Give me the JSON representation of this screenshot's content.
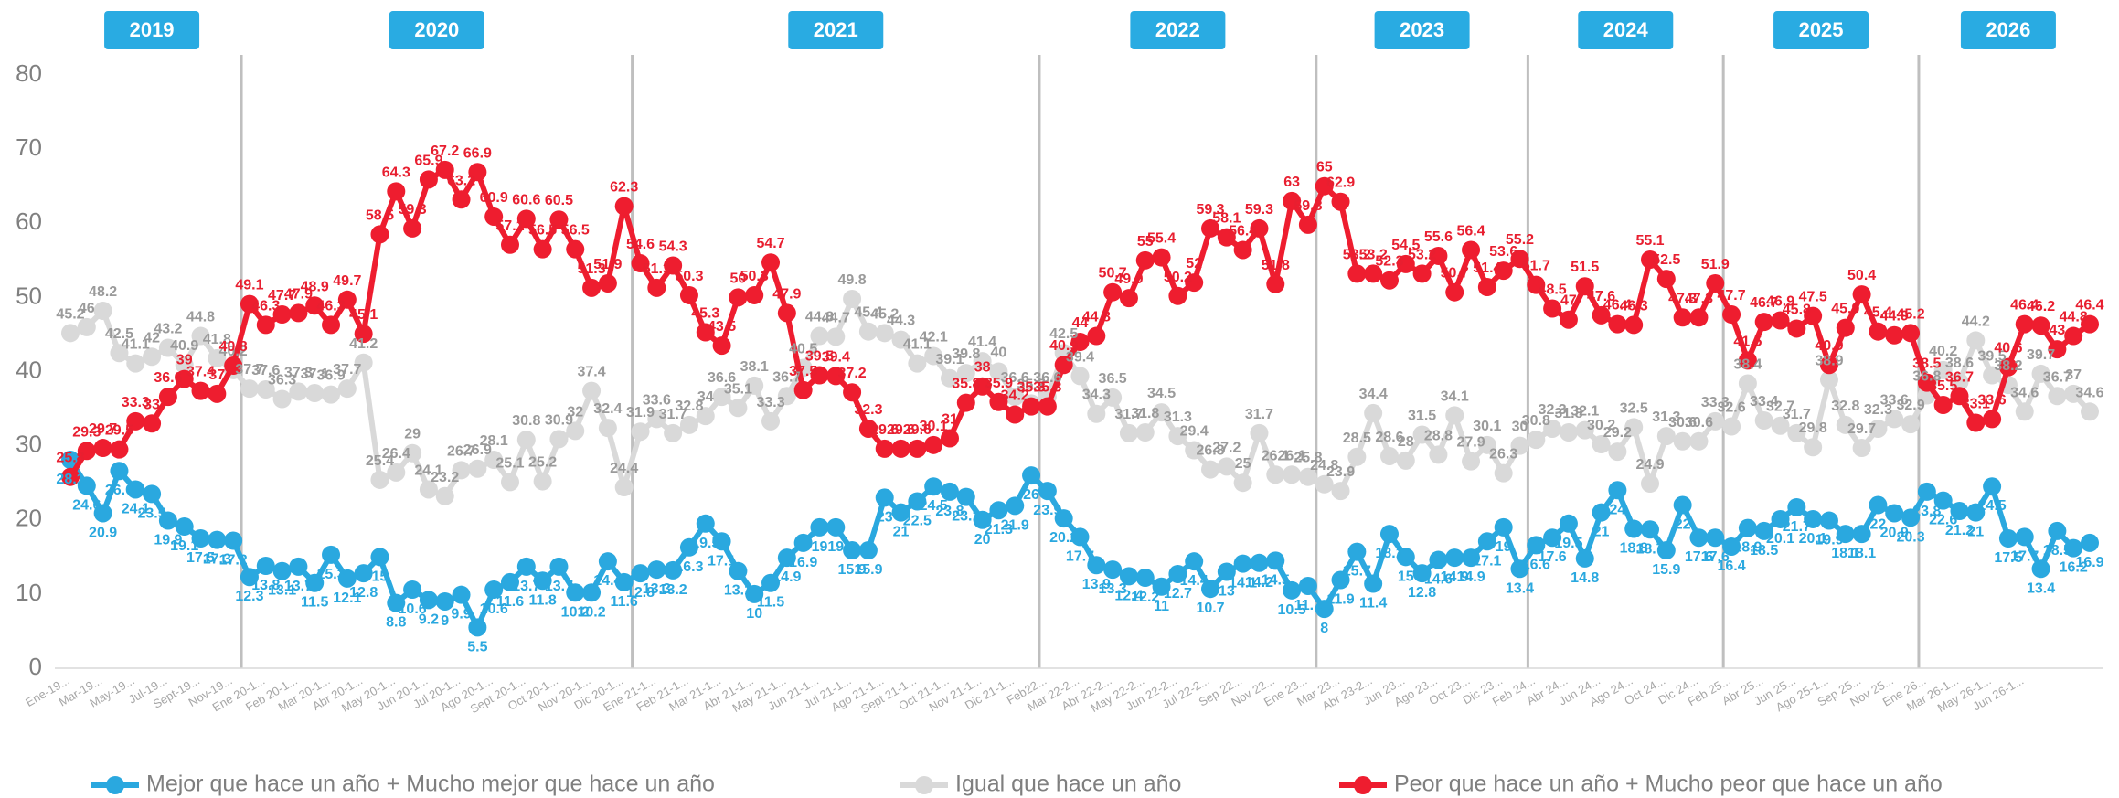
{
  "chart_data": {
    "type": "line",
    "years": [
      "2019",
      "2020",
      "2021",
      "2022",
      "2023",
      "2024",
      "2025",
      "2026"
    ],
    "categories": [
      "Ene-19...",
      null,
      "Mar-19...",
      null,
      "May-19...",
      null,
      "Jul-19...",
      null,
      "Sept-19...",
      null,
      "Nov-19...",
      null,
      "Ene 20-1...",
      null,
      "Feb 20-1...",
      null,
      "Mar 20-1...",
      null,
      "Abr 20-1...",
      null,
      "May 20-1...",
      null,
      "Jun 20-1...",
      null,
      "Jul 20-1...",
      null,
      "Ago 20-1...",
      null,
      "Sept 20-1...",
      null,
      "Oct 20-1...",
      null,
      "Nov 20-1...",
      null,
      "Dic 20-1...",
      null,
      "Ene 21-1...",
      null,
      "Feb 21-1...",
      null,
      "Mar 21-1...",
      null,
      "Abr 21-1...",
      null,
      "May 21-1...",
      null,
      "Jun 21-1...",
      null,
      "Jul 21-1...",
      null,
      "Ago 21-1...",
      null,
      "Sept 21-1...",
      null,
      "Oct 21-1...",
      null,
      "Nov 21-1...",
      null,
      "Dic 21-1...",
      null,
      "Feb22...",
      null,
      "Mar 22-2...",
      null,
      "Abr 22-2...",
      null,
      "May 22-2...",
      null,
      "Jun 22-2...",
      null,
      "Jul 22-2...",
      null,
      "Sep 22...",
      null,
      "Nov 22...",
      null,
      "Ene 23...",
      null,
      "Mar 23...",
      null,
      "Abr 23-2...",
      null,
      "Jun 23...",
      null,
      "Ago 23...",
      null,
      "Oct 23...",
      null,
      "Dic 23...",
      null,
      "Feb 24...",
      null,
      "Abr 24...",
      null,
      "Jun 24...",
      null,
      "Ago 24...",
      null,
      "Oct 24...",
      null,
      "Dic 24...",
      null,
      "Feb 25...",
      null,
      "Abr 25...",
      null,
      "Jun 25...",
      null,
      "Ago 25-1...",
      null,
      "Sep 25...",
      null,
      "Nov 25...",
      null,
      "Ene 26...",
      null,
      "Mar 26-1...",
      null,
      "May 26-1...",
      null,
      "Jun 26-1...",
      null,
      null,
      null,
      null
    ],
    "ylim": [
      0,
      80
    ],
    "yticks": [
      0,
      10,
      20,
      30,
      40,
      50,
      60,
      70,
      80
    ],
    "grid": false,
    "series": [
      {
        "name": "Mejor que hace un año + Mucho mejor que hace un año",
        "color": "#2aa8df",
        "label_color": "#2aa8df",
        "label_side": "below",
        "values": [
          28.1,
          24.6,
          20.9,
          26.6,
          24.1,
          23.5,
          19.9,
          19.1,
          17.5,
          17.3,
          17.2,
          12.3,
          13.8,
          13.1,
          13.7,
          11.5,
          15.3,
          12.1,
          12.8,
          15,
          8.8,
          10.6,
          9.2,
          9,
          9.9,
          5.5,
          10.6,
          11.6,
          13.7,
          11.8,
          13.7,
          10.2,
          10.2,
          14.4,
          11.6,
          12.8,
          13.3,
          13.2,
          16.3,
          19.5,
          17.1,
          13.1,
          10,
          11.5,
          14.9,
          16.9,
          19,
          19,
          15.9,
          15.9,
          23,
          21,
          22.5,
          24.5,
          23.8,
          23.1,
          20,
          21.3,
          21.9,
          26,
          23.9,
          20.2,
          17.7,
          13.9,
          13.3,
          12.4,
          12.2,
          11,
          12.7,
          14.4,
          10.7,
          13,
          14.1,
          14.2,
          14.5,
          10.5,
          11.1,
          8,
          11.9,
          15.7,
          11.4,
          18.1,
          15,
          12.8,
          14.6,
          14.9,
          14.9,
          17.1,
          19,
          13.4,
          16.6,
          17.6,
          19.5,
          14.8,
          21,
          24,
          18.8,
          18.7,
          15.9,
          22,
          17.6,
          17.6,
          16.4,
          18.9,
          18.5,
          20.1,
          21.7,
          20.1,
          19.9,
          18.1,
          18.1,
          22,
          20.9,
          20.3,
          23.8,
          22.6,
          21.2,
          21,
          24.5,
          17.5,
          17.7,
          13.4,
          18.5,
          16.2,
          16.9
        ]
      },
      {
        "name": "Igual que hace un año",
        "color": "#d9d9d9",
        "label_color": "#9a9a9a",
        "label_side": "above",
        "values": [
          45.2,
          46,
          48.2,
          42.5,
          41.1,
          42,
          43.2,
          40.9,
          44.8,
          41.8,
          40.2,
          37.7,
          37.6,
          36.3,
          37.3,
          37.1,
          36.9,
          37.7,
          41.2,
          25.4,
          26.4,
          29,
          24.1,
          23.2,
          26.7,
          26.9,
          28.1,
          25.1,
          30.8,
          25.2,
          30.9,
          32,
          37.4,
          32.4,
          24.4,
          31.9,
          33.6,
          31.7,
          32.8,
          34,
          36.6,
          35.1,
          38.1,
          33.3,
          36.7,
          40.5,
          44.8,
          44.7,
          49.8,
          45.4,
          45.2,
          44.3,
          41.1,
          42.1,
          39.1,
          39.8,
          41.4,
          40,
          36.6,
          35.7,
          36.6,
          42.5,
          39.4,
          34.3,
          36.5,
          31.7,
          31.8,
          34.5,
          31.3,
          29.4,
          26.8,
          27.2,
          25,
          31.7,
          26.1,
          26.1,
          25.8,
          24.8,
          23.9,
          28.5,
          34.4,
          28.6,
          28,
          31.5,
          28.8,
          34.1,
          27.9,
          30.1,
          26.3,
          30,
          30.8,
          32.3,
          31.8,
          32.1,
          30.2,
          29.2,
          32.5,
          24.9,
          31.3,
          30.6,
          30.6,
          33.3,
          32.6,
          38.4,
          33.4,
          32.7,
          31.7,
          29.8,
          38.9,
          32.8,
          29.7,
          32.3,
          33.6,
          32.9,
          36.8,
          40.2,
          38.6,
          44.2,
          39.5,
          38.2,
          34.6,
          39.7,
          36.7,
          37,
          34.6
        ]
      },
      {
        "name": "Peor que hace un año + Mucho peor que hace un año",
        "color": "#ee1d2f",
        "label_color": "#e81f30",
        "label_side": "above",
        "values": [
          25.8,
          29.3,
          29.7,
          29.5,
          33.3,
          33,
          36.6,
          39,
          37.4,
          37,
          40.8,
          49.1,
          46.3,
          47.7,
          47.9,
          48.9,
          46.3,
          49.7,
          45.1,
          58.5,
          64.3,
          59.3,
          65.9,
          67.2,
          63.2,
          66.9,
          60.9,
          57.1,
          60.6,
          56.5,
          60.5,
          56.5,
          51.3,
          51.9,
          62.3,
          54.6,
          51.3,
          54.3,
          50.3,
          45.3,
          43.5,
          50,
          50.3,
          54.7,
          47.9,
          37.5,
          39.5,
          39.4,
          37.2,
          32.3,
          29.6,
          29.6,
          29.6,
          30.1,
          31,
          35.8,
          38,
          35.9,
          34.2,
          35.3,
          35.3,
          40.9,
          44,
          44.8,
          50.7,
          49.9,
          55,
          55.4,
          50.2,
          52,
          59.3,
          58.1,
          56.4,
          59.3,
          51.8,
          63,
          59.8,
          65,
          62.9,
          53.2,
          53.2,
          52.3,
          54.5,
          53.2,
          55.6,
          50.7,
          56.4,
          51.4,
          53.6,
          55.2,
          51.7,
          48.5,
          47,
          51.5,
          47.6,
          46.4,
          46.3,
          55.1,
          52.5,
          47.3,
          47.3,
          51.9,
          47.7,
          41.5,
          46.7,
          46.9,
          45.8,
          47.5,
          40.9,
          45.9,
          50.4,
          45.4,
          44.9,
          45.2,
          38.5,
          35.5,
          36.7,
          33.1,
          33.6,
          40.6,
          46.4,
          46.2,
          43,
          44.8,
          46.4
        ]
      }
    ]
  }
}
